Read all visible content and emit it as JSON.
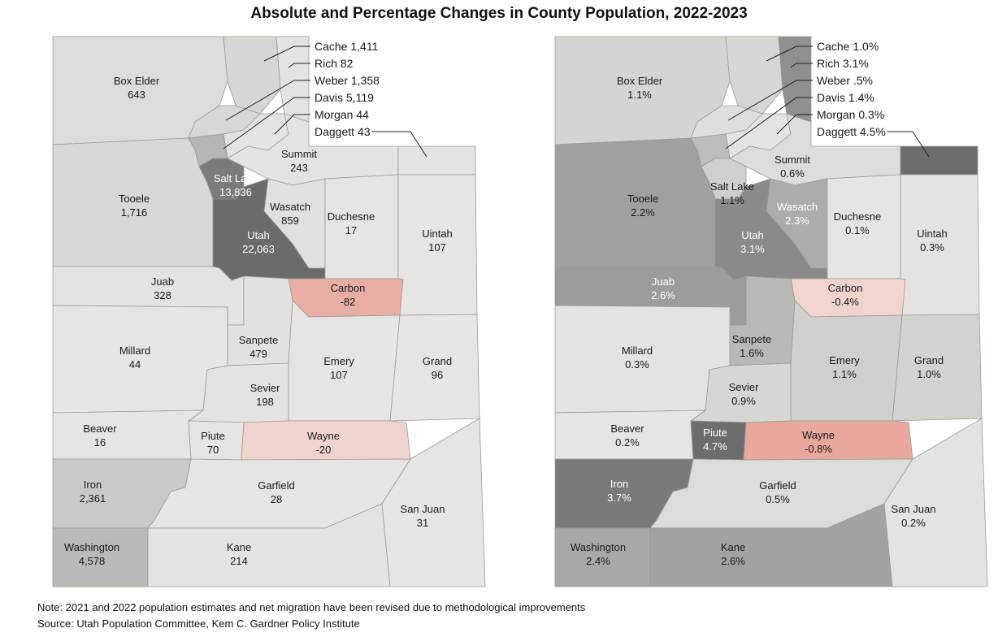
{
  "title": "Absolute and Percentage Changes in County Population, 2022-2023",
  "note": "Note: 2021 and 2022 population estimates and net migration have been revised due to methodological improvements",
  "source": "Source: Utah Population Committee,  Kem C. Gardner Policy Institute",
  "maps": [
    {
      "measure": "absolute change",
      "counties": [
        {
          "name": "Box Elder",
          "value": "643",
          "fill": "#dcdcda"
        },
        {
          "name": "Cache",
          "value": "1,411",
          "fill": "#d8d6d3"
        },
        {
          "name": "Rich",
          "value": "82",
          "fill": "#e4e3e1"
        },
        {
          "name": "Weber",
          "value": "1,358",
          "fill": "#d7d7d4"
        },
        {
          "name": "Davis",
          "value": "5,119",
          "fill": "#b5b5b2"
        },
        {
          "name": "Morgan",
          "value": "44",
          "fill": "#e4e3e1"
        },
        {
          "name": "Summit",
          "value": "243",
          "fill": "#e4e3e1"
        },
        {
          "name": "Daggett",
          "value": "43",
          "fill": "#e4e3e1"
        },
        {
          "name": "Salt Lake",
          "value": "13,836",
          "fill": "#7b7b79"
        },
        {
          "name": "Tooele",
          "value": "1,716",
          "fill": "#d8d8d5"
        },
        {
          "name": "Utah",
          "value": "22,063",
          "fill": "#6b6b69"
        },
        {
          "name": "Wasatch",
          "value": "859",
          "fill": "#e1e0de"
        },
        {
          "name": "Duchesne",
          "value": "17",
          "fill": "#e6e5e3"
        },
        {
          "name": "Uintah",
          "value": "107",
          "fill": "#e6e5e3"
        },
        {
          "name": "Juab",
          "value": "328",
          "fill": "#e4e3e1"
        },
        {
          "name": "Carbon",
          "value": "-82",
          "fill": "#e8aea6"
        },
        {
          "name": "Sanpete",
          "value": "479",
          "fill": "#e2e1df"
        },
        {
          "name": "Millard",
          "value": "44",
          "fill": "#e6e5e3"
        },
        {
          "name": "Emery",
          "value": "107",
          "fill": "#e6e5e3"
        },
        {
          "name": "Grand",
          "value": "96",
          "fill": "#e6e5e3"
        },
        {
          "name": "Sevier",
          "value": "198",
          "fill": "#e4e3e1"
        },
        {
          "name": "Beaver",
          "value": "16",
          "fill": "#e6e5e3"
        },
        {
          "name": "Piute",
          "value": "70",
          "fill": "#e6e5e3"
        },
        {
          "name": "Wayne",
          "value": "-20",
          "fill": "#efd4ce"
        },
        {
          "name": "Iron",
          "value": "2,361",
          "fill": "#cacac7"
        },
        {
          "name": "Garfield",
          "value": "28",
          "fill": "#e6e5e3"
        },
        {
          "name": "Washington",
          "value": "4,578",
          "fill": "#b9b9b6"
        },
        {
          "name": "Kane",
          "value": "214",
          "fill": "#e4e3e1"
        },
        {
          "name": "San Juan",
          "value": "31",
          "fill": "#e6e5e3"
        }
      ]
    },
    {
      "measure": "percentage change",
      "counties": [
        {
          "name": "Box Elder",
          "value": "1.1%",
          "fill": "#d4d4d1"
        },
        {
          "name": "Cache",
          "value": "1.0%",
          "fill": "#d6d6d3"
        },
        {
          "name": "Rich",
          "value": "3.1%",
          "fill": "#8f8f8d"
        },
        {
          "name": "Weber",
          "value": ".5%",
          "fill": "#dededb"
        },
        {
          "name": "Davis",
          "value": "1.4%",
          "fill": "#bdbdba"
        },
        {
          "name": "Morgan",
          "value": "0.3%",
          "fill": "#e4e3e1"
        },
        {
          "name": "Summit",
          "value": "0.6%",
          "fill": "#dcdcd9"
        },
        {
          "name": "Daggett",
          "value": "4.5%",
          "fill": "#6d6d6b"
        },
        {
          "name": "Salt Lake",
          "value": "1.1%",
          "fill": "#cfcfcc"
        },
        {
          "name": "Tooele",
          "value": "2.2%",
          "fill": "#a0a09e"
        },
        {
          "name": "Utah",
          "value": "3.1%",
          "fill": "#8a8a88"
        },
        {
          "name": "Wasatch",
          "value": "2.3%",
          "fill": "#acacaa"
        },
        {
          "name": "Duchesne",
          "value": "0.1%",
          "fill": "#e6e5e3"
        },
        {
          "name": "Uintah",
          "value": "0.3%",
          "fill": "#e4e3e1"
        },
        {
          "name": "Juab",
          "value": "2.6%",
          "fill": "#9c9c9a"
        },
        {
          "name": "Carbon",
          "value": "-0.4%",
          "fill": "#f1d4ce"
        },
        {
          "name": "Sanpete",
          "value": "1.6%",
          "fill": "#b8b8b5"
        },
        {
          "name": "Millard",
          "value": "0.3%",
          "fill": "#e4e3e1"
        },
        {
          "name": "Emery",
          "value": "1.1%",
          "fill": "#cfcfcc"
        },
        {
          "name": "Grand",
          "value": "1.0%",
          "fill": "#d2d2cf"
        },
        {
          "name": "Sevier",
          "value": "0.9%",
          "fill": "#d6d6d3"
        },
        {
          "name": "Beaver",
          "value": "0.2%",
          "fill": "#e6e5e3"
        },
        {
          "name": "Piute",
          "value": "4.7%",
          "fill": "#6d6d6b"
        },
        {
          "name": "Wayne",
          "value": "-0.8%",
          "fill": "#e9a89e"
        },
        {
          "name": "Iron",
          "value": "3.7%",
          "fill": "#7a7a78"
        },
        {
          "name": "Garfield",
          "value": "0.5%",
          "fill": "#dcdcd9"
        },
        {
          "name": "Washington",
          "value": "2.4%",
          "fill": "#a8a8a6"
        },
        {
          "name": "Kane",
          "value": "2.6%",
          "fill": "#a2a2a0"
        },
        {
          "name": "San Juan",
          "value": "0.2%",
          "fill": "#e4e3e1"
        }
      ]
    }
  ]
}
